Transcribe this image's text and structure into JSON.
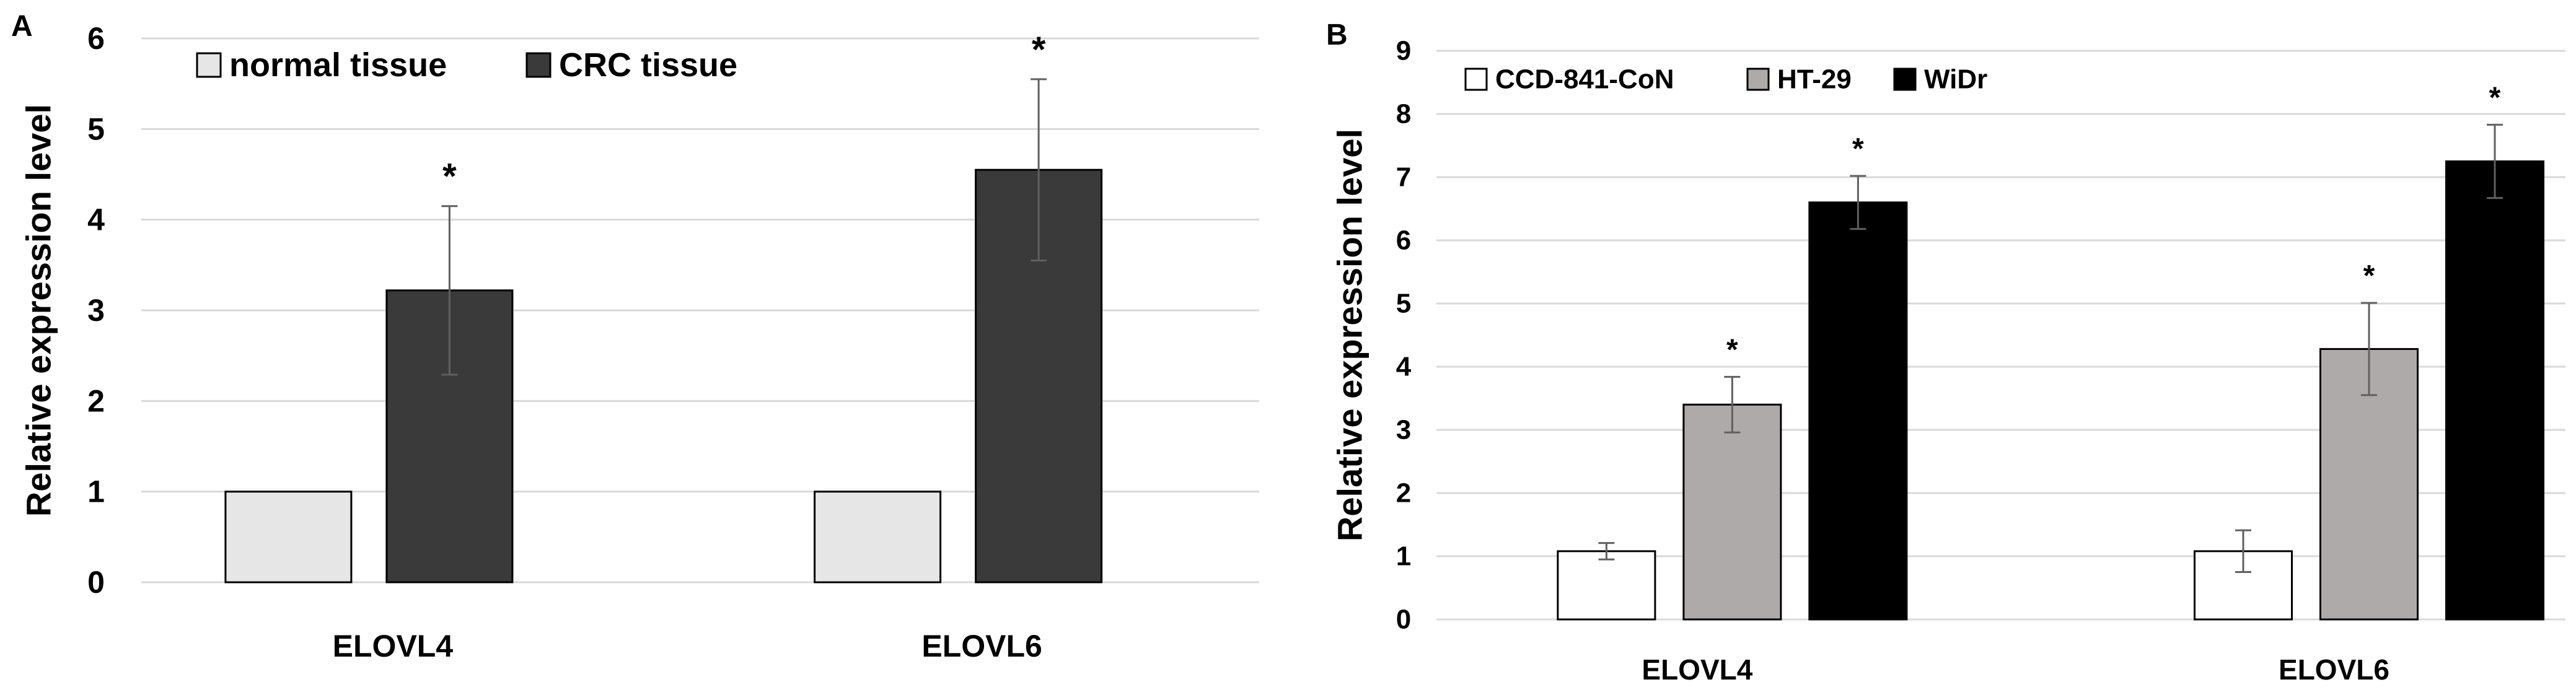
{
  "chart_data": [
    {
      "panel": "A",
      "type": "bar",
      "title": "",
      "xlabel": "",
      "ylabel": "Relative expression level",
      "ylim": [
        0,
        6
      ],
      "yticks": [
        0,
        1,
        2,
        3,
        4,
        5,
        6
      ],
      "grid": true,
      "legend_position": "top-left",
      "categories": [
        "ELOVL4",
        "ELOVL6"
      ],
      "series": [
        {
          "name": "normal tissue",
          "color": "#e6e6e6",
          "values": [
            1,
            1
          ],
          "errors": [
            null,
            null
          ],
          "significance": [
            "",
            ""
          ]
        },
        {
          "name": "CRC tissue",
          "color": "#3a3a3a",
          "values": [
            3.22,
            4.55
          ],
          "errors": [
            0.93,
            1.0
          ],
          "significance": [
            "*",
            "*"
          ]
        }
      ]
    },
    {
      "panel": "B",
      "type": "bar",
      "title": "",
      "xlabel": "",
      "ylabel": "Relative expression level",
      "ylim": [
        0,
        9
      ],
      "yticks": [
        0,
        1,
        2,
        3,
        4,
        5,
        6,
        7,
        8,
        9
      ],
      "grid": true,
      "legend_position": "top-left",
      "categories": [
        "ELOVL4",
        "ELOVL6"
      ],
      "series": [
        {
          "name": "CCD-841-CoN",
          "color": "#ffffff",
          "values": [
            1.08,
            1.08
          ],
          "errors": [
            0.13,
            0.33
          ],
          "significance": [
            "",
            ""
          ]
        },
        {
          "name": "HT-29",
          "color": "#aeaaaa",
          "values": [
            3.4,
            4.28
          ],
          "errors": [
            0.44,
            0.73
          ],
          "significance": [
            "*",
            "*"
          ]
        },
        {
          "name": "WiDr",
          "color": "#000000",
          "values": [
            6.6,
            7.25
          ],
          "errors": [
            0.42,
            0.58
          ],
          "significance": [
            "*",
            "*"
          ]
        }
      ]
    }
  ]
}
